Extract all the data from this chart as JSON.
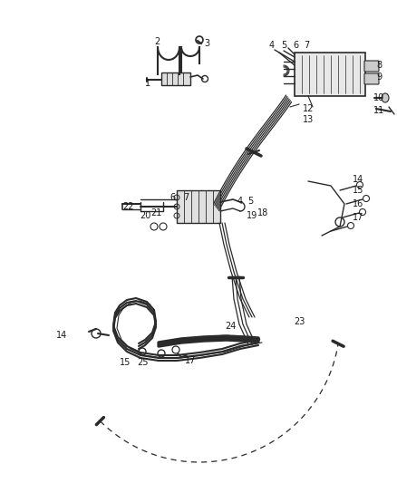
{
  "bg_color": "#ffffff",
  "line_color": "#2a2a2a",
  "label_color": "#1a1a1a",
  "label_fontsize": 7.0,
  "fig_width": 4.38,
  "fig_height": 5.33,
  "dpi": 100
}
